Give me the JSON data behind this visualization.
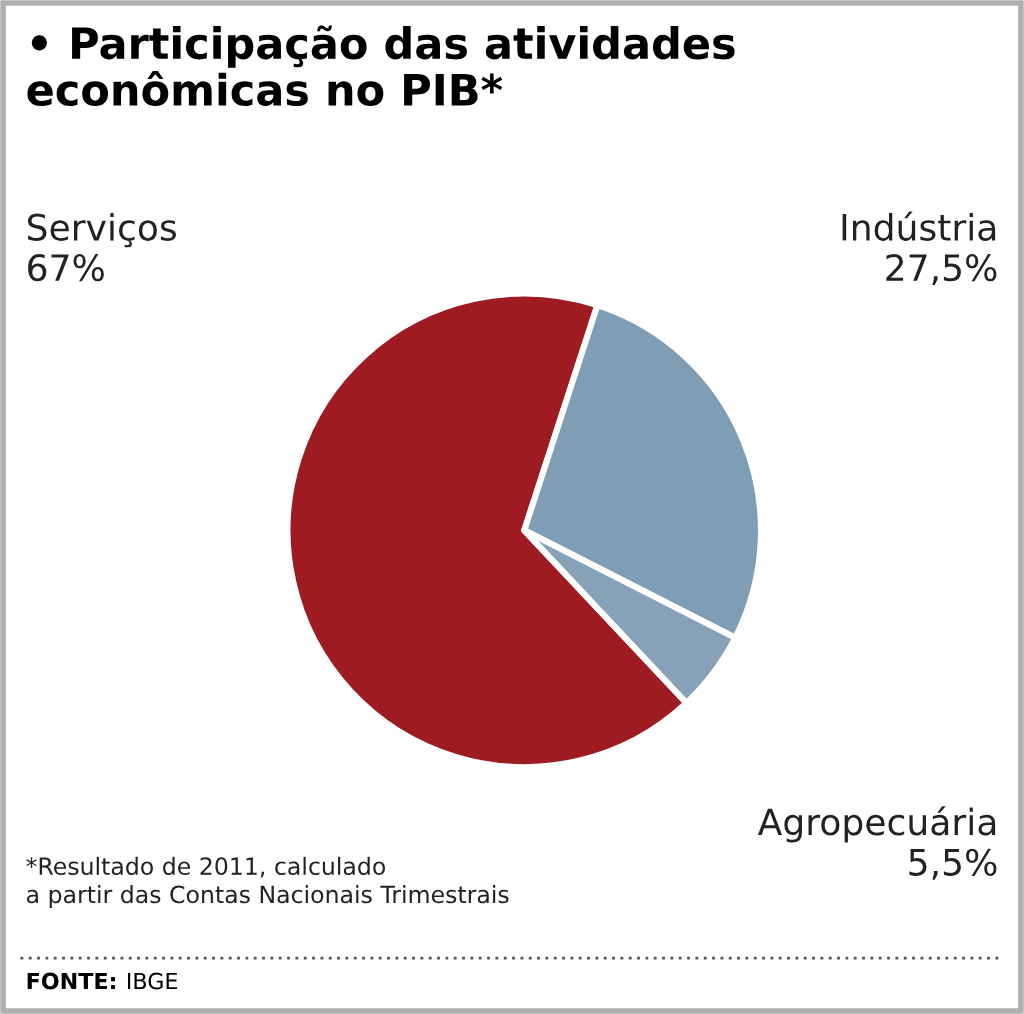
{
  "chart_data": {
    "type": "pie",
    "title": "• Participação das atividades\neconômicas no PIB*",
    "categories": [
      "Serviços",
      "Indústria",
      "Agropecuária"
    ],
    "values": [
      67,
      27.5,
      5.5
    ],
    "colors": [
      "#9e1b22",
      "#7f9db4",
      "#87a2b8"
    ],
    "value_labels": [
      "67%",
      "27,5%",
      "5,5%"
    ],
    "annotations": [
      "*Resultado de 2011, calculado\na partir das Contas Nacionais Trimestrais",
      "FONTE: IBGE"
    ]
  }
}
